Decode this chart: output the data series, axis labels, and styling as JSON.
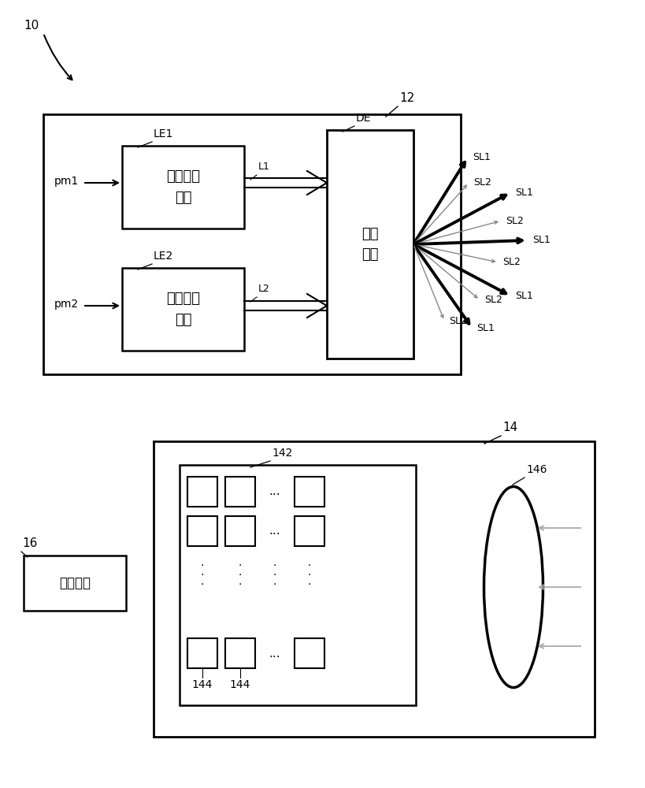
{
  "bg_color": "#ffffff",
  "line_color": "#000000",
  "gray_color": "#888888",
  "label_10": "10",
  "label_12": "12",
  "label_14": "14",
  "label_16": "16",
  "label_142": "142",
  "label_144_1": "144",
  "label_144_2": "144",
  "label_146": "146",
  "label_LE1": "LE1",
  "label_LE2": "LE2",
  "label_DE": "DE",
  "label_L1": "L1",
  "label_L2": "L2",
  "label_pm1": "pm1",
  "label_pm2": "pm2",
  "text_unit1": "第一发光\n单元",
  "text_unit2": "第二发光\n单元",
  "text_scan": "绵射\n单元",
  "text_compute": "运算单元",
  "font_size_small": 9,
  "font_size_label": 10,
  "font_size_main": 11,
  "font_size_chinese": 13
}
